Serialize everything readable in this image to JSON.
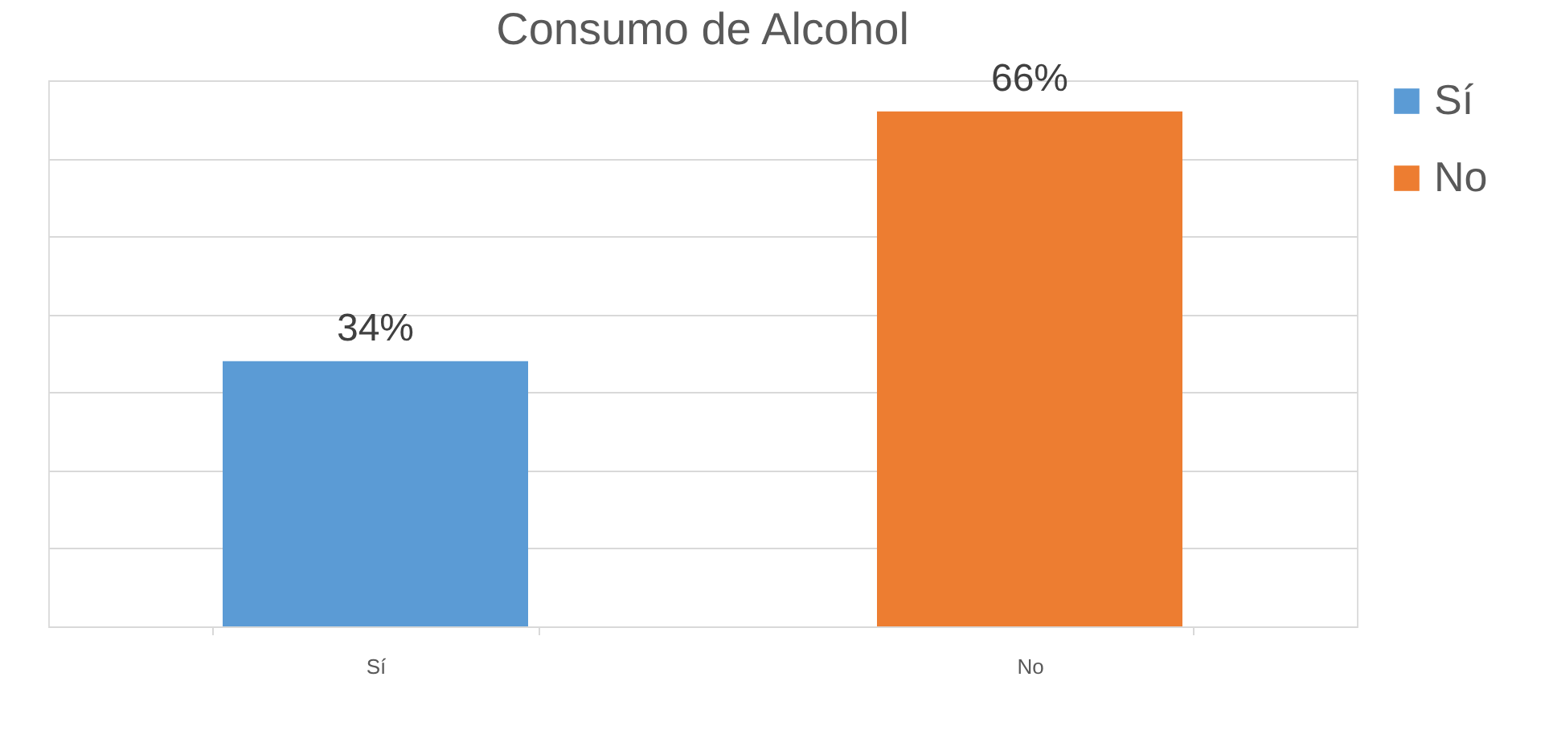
{
  "chart_data": {
    "type": "bar",
    "title": "Consumo de Alcohol",
    "categories": [
      "Sí",
      "No"
    ],
    "series": [
      {
        "name": "Sí",
        "color": "#5b9bd5",
        "values": [
          34,
          null
        ],
        "value_labels": [
          "34%",
          null
        ]
      },
      {
        "name": "No",
        "color": "#ed7d31",
        "values": [
          null,
          66
        ],
        "value_labels": [
          null,
          "66%"
        ]
      }
    ],
    "ylim": [
      0,
      70
    ],
    "yticks": [
      {
        "value": 0,
        "label": null
      },
      {
        "value": 10,
        "label": null
      },
      {
        "value": 20,
        "label": null
      },
      {
        "value": 30,
        "label": null
      },
      {
        "value": 40,
        "label": null
      },
      {
        "value": 50,
        "label": null
      },
      {
        "value": 60,
        "label": null
      },
      {
        "value": 70,
        "label": null
      }
    ],
    "grid": "y",
    "legend": "right",
    "tick_labels": "x"
  }
}
